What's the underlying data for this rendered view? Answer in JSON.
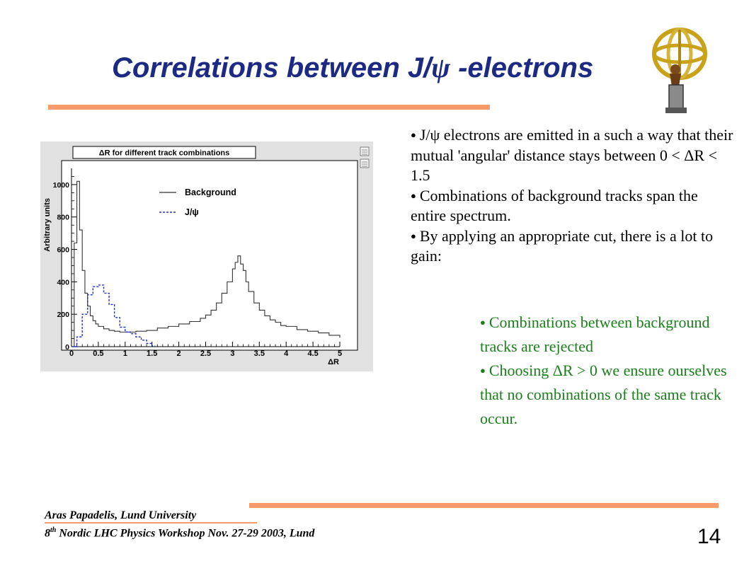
{
  "slide": {
    "title_prefix": "Correlations between J/",
    "title_psi": "ψ",
    "title_suffix": " -electrons",
    "page_number": "14"
  },
  "bullets": [
    "J/ψ electrons are emitted in a such a way that their mutual 'angular' distance stays between 0 < ΔR < 1.5",
    "Combinations of background tracks span the entire spectrum.",
    "By applying an appropriate cut, there is a lot to gain:"
  ],
  "sub_bullets": [
    "Combinations between background tracks are rejected",
    "Choosing ΔR > 0 we ensure ourselves that no combinations of the same track occur."
  ],
  "footer": {
    "line1": "Aras Papadelis,  Lund University",
    "line2_num": "8",
    "line2_sup": "th",
    "line2_rest": " Nordic LHC Physics Workshop Nov. 27-29 2003, Lund"
  },
  "colors": {
    "title": "#1c2a84",
    "rule": "#f79a6a",
    "sub_bullet_text": "#1a7f1a",
    "background_series": "#333333",
    "jpsi_series": "#1f2fd0"
  },
  "chart_data": {
    "type": "line",
    "title": "ΔR for different track combinations",
    "xlabel": "ΔR",
    "ylabel": "Arbitrary units",
    "xlim": [
      0,
      5
    ],
    "ylim": [
      0,
      1100
    ],
    "x_ticks": [
      "0",
      "0.5",
      "1",
      "1.5",
      "2",
      "2.5",
      "3",
      "3.5",
      "4",
      "4.5",
      "5"
    ],
    "y_ticks": [
      "0",
      "200",
      "400",
      "600",
      "800",
      "1000"
    ],
    "legend_position": "top-center",
    "grid": false,
    "series": [
      {
        "name": "Background",
        "style": "solid",
        "x": [
          0.05,
          0.1,
          0.15,
          0.2,
          0.25,
          0.3,
          0.35,
          0.4,
          0.45,
          0.5,
          0.6,
          0.7,
          0.8,
          0.9,
          1.0,
          1.2,
          1.4,
          1.6,
          1.8,
          2.0,
          2.2,
          2.4,
          2.5,
          2.6,
          2.7,
          2.8,
          2.9,
          3.0,
          3.05,
          3.1,
          3.15,
          3.2,
          3.25,
          3.3,
          3.4,
          3.5,
          3.6,
          3.7,
          3.8,
          3.9,
          4.0,
          4.2,
          4.4,
          4.6,
          4.8,
          5.0
        ],
        "y": [
          640,
          1020,
          720,
          470,
          330,
          250,
          190,
          160,
          140,
          125,
          110,
          100,
          95,
          90,
          90,
          95,
          100,
          115,
          125,
          140,
          155,
          175,
          195,
          225,
          270,
          330,
          400,
          480,
          520,
          560,
          510,
          470,
          400,
          340,
          270,
          225,
          190,
          165,
          150,
          130,
          125,
          105,
          95,
          85,
          70,
          55
        ]
      },
      {
        "name": "J/ψ",
        "style": "dashed",
        "x": [
          0.0,
          0.1,
          0.2,
          0.3,
          0.4,
          0.5,
          0.6,
          0.7,
          0.8,
          0.9,
          1.0,
          1.1,
          1.2,
          1.3,
          1.4,
          1.5
        ],
        "y": [
          0,
          60,
          200,
          320,
          370,
          380,
          330,
          260,
          180,
          120,
          90,
          80,
          60,
          40,
          20,
          5
        ]
      }
    ]
  }
}
